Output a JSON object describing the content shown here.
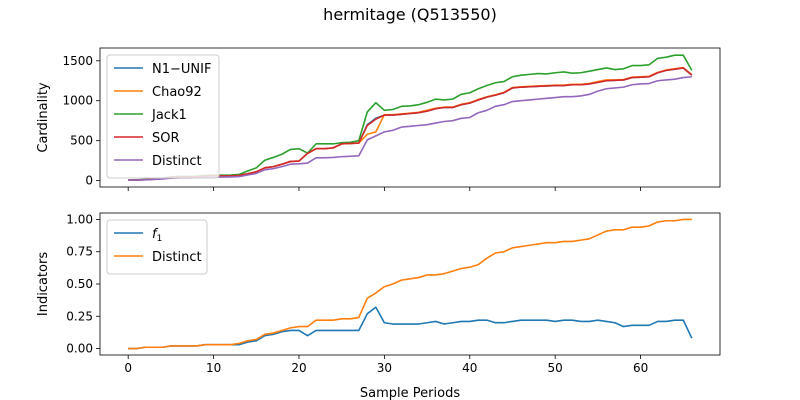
{
  "figure": {
    "title": "hermitage (Q513550)"
  },
  "chart_data": [
    {
      "type": "line",
      "ylabel": "Cardinality",
      "xlabel": "",
      "xlim": [
        -3.3,
        69.3
      ],
      "ylim": [
        -80,
        1660
      ],
      "xticks": [
        0,
        10,
        20,
        30,
        40,
        50,
        60
      ],
      "yticks": [
        0,
        500,
        1000,
        1500
      ],
      "show_xticklabels": false,
      "legend_position": "upper left",
      "grid": false,
      "series": [
        {
          "name": "N1−UNIF",
          "color": "#1f77b4",
          "x": [
            0,
            1,
            2,
            3,
            4,
            5,
            6,
            7,
            8,
            9,
            10,
            11,
            12,
            13,
            14,
            15,
            16,
            17,
            18,
            19,
            20,
            21,
            22,
            23,
            24,
            25,
            26,
            27,
            28,
            29,
            30,
            31,
            32,
            33,
            34,
            35,
            36,
            37,
            38,
            39,
            40,
            41,
            42,
            43,
            44,
            45,
            46,
            47,
            48,
            49,
            50,
            51,
            52,
            53,
            54,
            55,
            56,
            57,
            58,
            59,
            60,
            61,
            62,
            63,
            64,
            65,
            66
          ],
          "y": [
            5,
            8,
            12,
            18,
            25,
            40,
            45,
            45,
            48,
            55,
            58,
            58,
            60,
            65,
            85,
            110,
            160,
            175,
            205,
            240,
            245,
            340,
            400,
            400,
            410,
            460,
            465,
            470,
            700,
            780,
            820,
            820,
            830,
            840,
            850,
            870,
            900,
            915,
            915,
            950,
            970,
            1010,
            1045,
            1070,
            1100,
            1160,
            1170,
            1175,
            1180,
            1185,
            1190,
            1190,
            1200,
            1200,
            1210,
            1230,
            1250,
            1255,
            1260,
            1290,
            1295,
            1300,
            1350,
            1380,
            1395,
            1410,
            1320
          ]
        },
        {
          "name": "Chao92",
          "color": "#ff7f0e",
          "x": [
            0,
            1,
            2,
            3,
            4,
            5,
            6,
            7,
            8,
            9,
            10,
            11,
            12,
            13,
            14,
            15,
            16,
            17,
            18,
            19,
            20,
            21,
            22,
            23,
            24,
            25,
            26,
            27,
            28,
            29,
            30,
            31,
            32,
            33,
            34,
            35,
            36,
            37,
            38,
            39,
            40,
            41,
            42,
            43,
            44,
            45,
            46,
            47,
            48,
            49,
            50,
            51,
            52,
            53,
            54,
            55,
            56,
            57,
            58,
            59,
            60,
            61,
            62,
            63,
            64,
            65,
            66
          ],
          "y": [
            5,
            8,
            12,
            18,
            25,
            40,
            45,
            45,
            48,
            55,
            58,
            58,
            60,
            65,
            85,
            110,
            160,
            175,
            205,
            240,
            245,
            340,
            400,
            400,
            410,
            460,
            465,
            470,
            580,
            610,
            825,
            825,
            835,
            845,
            855,
            880,
            905,
            920,
            920,
            955,
            975,
            1015,
            1050,
            1075,
            1105,
            1165,
            1175,
            1180,
            1185,
            1190,
            1195,
            1195,
            1205,
            1205,
            1215,
            1240,
            1260,
            1260,
            1265,
            1295,
            1300,
            1305,
            1355,
            1385,
            1400,
            1415,
            1325
          ]
        },
        {
          "name": "Jack1",
          "color": "#2ca02c",
          "x": [
            0,
            1,
            2,
            3,
            4,
            5,
            6,
            7,
            8,
            9,
            10,
            11,
            12,
            13,
            14,
            15,
            16,
            17,
            18,
            19,
            20,
            21,
            22,
            23,
            24,
            25,
            26,
            27,
            28,
            29,
            30,
            31,
            32,
            33,
            34,
            35,
            36,
            37,
            38,
            39,
            40,
            41,
            42,
            43,
            44,
            45,
            46,
            47,
            48,
            49,
            50,
            51,
            52,
            53,
            54,
            55,
            56,
            57,
            58,
            59,
            60,
            61,
            62,
            63,
            64,
            65,
            66
          ],
          "y": [
            5,
            10,
            15,
            20,
            30,
            48,
            52,
            52,
            55,
            65,
            68,
            68,
            70,
            78,
            120,
            160,
            255,
            290,
            330,
            390,
            400,
            345,
            460,
            460,
            460,
            475,
            480,
            500,
            860,
            975,
            880,
            890,
            930,
            935,
            950,
            980,
            1020,
            1010,
            1020,
            1080,
            1100,
            1150,
            1190,
            1225,
            1240,
            1300,
            1320,
            1330,
            1340,
            1335,
            1350,
            1360,
            1345,
            1350,
            1370,
            1390,
            1410,
            1390,
            1400,
            1440,
            1440,
            1450,
            1530,
            1545,
            1570,
            1570,
            1380
          ]
        },
        {
          "name": "SOR",
          "color": "#d62728",
          "x": [
            0,
            1,
            2,
            3,
            4,
            5,
            6,
            7,
            8,
            9,
            10,
            11,
            12,
            13,
            14,
            15,
            16,
            17,
            18,
            19,
            20,
            21,
            22,
            23,
            24,
            25,
            26,
            27,
            28,
            29,
            30,
            31,
            32,
            33,
            34,
            35,
            36,
            37,
            38,
            39,
            40,
            41,
            42,
            43,
            44,
            45,
            46,
            47,
            48,
            49,
            50,
            51,
            52,
            53,
            54,
            55,
            56,
            57,
            58,
            59,
            60,
            61,
            62,
            63,
            64,
            65,
            66
          ],
          "y": [
            5,
            8,
            12,
            18,
            25,
            40,
            45,
            45,
            48,
            55,
            58,
            58,
            60,
            65,
            85,
            110,
            160,
            175,
            205,
            240,
            245,
            340,
            400,
            400,
            410,
            460,
            465,
            470,
            690,
            770,
            820,
            820,
            830,
            840,
            850,
            870,
            900,
            915,
            915,
            950,
            970,
            1010,
            1045,
            1070,
            1100,
            1160,
            1170,
            1175,
            1180,
            1185,
            1190,
            1190,
            1200,
            1200,
            1210,
            1230,
            1250,
            1255,
            1260,
            1290,
            1295,
            1300,
            1350,
            1380,
            1395,
            1410,
            1320
          ]
        },
        {
          "name": "Distinct",
          "color": "#9467bd",
          "x": [
            0,
            1,
            2,
            3,
            4,
            5,
            6,
            7,
            8,
            9,
            10,
            11,
            12,
            13,
            14,
            15,
            16,
            17,
            18,
            19,
            20,
            21,
            22,
            23,
            24,
            25,
            26,
            27,
            28,
            29,
            30,
            31,
            32,
            33,
            34,
            35,
            36,
            37,
            38,
            39,
            40,
            41,
            42,
            43,
            44,
            45,
            46,
            47,
            48,
            49,
            50,
            51,
            52,
            53,
            54,
            55,
            56,
            57,
            58,
            59,
            60,
            61,
            62,
            63,
            64,
            65,
            66
          ],
          "y": [
            5,
            7,
            10,
            15,
            20,
            30,
            35,
            35,
            37,
            42,
            44,
            44,
            46,
            50,
            70,
            90,
            135,
            150,
            175,
            205,
            210,
            220,
            285,
            285,
            290,
            300,
            305,
            310,
            510,
            560,
            610,
            630,
            670,
            680,
            690,
            700,
            720,
            740,
            750,
            780,
            790,
            850,
            880,
            930,
            950,
            990,
            1000,
            1010,
            1020,
            1030,
            1040,
            1050,
            1050,
            1060,
            1080,
            1120,
            1150,
            1160,
            1170,
            1200,
            1210,
            1215,
            1250,
            1260,
            1270,
            1290,
            1300
          ]
        }
      ]
    },
    {
      "type": "line",
      "ylabel": "Indicators",
      "xlabel": "Sample Periods",
      "xlim": [
        -3.3,
        69.3
      ],
      "ylim": [
        -0.05,
        1.05
      ],
      "xticks": [
        0,
        10,
        20,
        30,
        40,
        50,
        60
      ],
      "yticks": [
        0.0,
        0.25,
        0.5,
        0.75,
        1.0
      ],
      "ytick_labels": [
        "0.00",
        "0.25",
        "0.50",
        "0.75",
        "1.00"
      ],
      "show_xticklabels": true,
      "legend_position": "upper left",
      "grid": false,
      "series": [
        {
          "name": "f1",
          "color": "#1f77b4",
          "x": [
            0,
            1,
            2,
            3,
            4,
            5,
            6,
            7,
            8,
            9,
            10,
            11,
            12,
            13,
            14,
            15,
            16,
            17,
            18,
            19,
            20,
            21,
            22,
            23,
            24,
            25,
            26,
            27,
            28,
            29,
            30,
            31,
            32,
            33,
            34,
            35,
            36,
            37,
            38,
            39,
            40,
            41,
            42,
            43,
            44,
            45,
            46,
            47,
            48,
            49,
            50,
            51,
            52,
            53,
            54,
            55,
            56,
            57,
            58,
            59,
            60,
            61,
            62,
            63,
            64,
            65,
            66
          ],
          "y": [
            0.0,
            0.0,
            0.01,
            0.01,
            0.01,
            0.02,
            0.02,
            0.02,
            0.02,
            0.03,
            0.03,
            0.03,
            0.03,
            0.03,
            0.05,
            0.06,
            0.1,
            0.11,
            0.13,
            0.14,
            0.14,
            0.1,
            0.14,
            0.14,
            0.14,
            0.14,
            0.14,
            0.14,
            0.27,
            0.32,
            0.2,
            0.19,
            0.19,
            0.19,
            0.19,
            0.2,
            0.21,
            0.19,
            0.2,
            0.21,
            0.21,
            0.22,
            0.22,
            0.2,
            0.2,
            0.21,
            0.22,
            0.22,
            0.22,
            0.22,
            0.21,
            0.22,
            0.22,
            0.21,
            0.21,
            0.22,
            0.21,
            0.2,
            0.17,
            0.18,
            0.18,
            0.18,
            0.21,
            0.21,
            0.22,
            0.22,
            0.08
          ]
        },
        {
          "name": "Distinct",
          "color": "#ff7f0e",
          "x": [
            0,
            1,
            2,
            3,
            4,
            5,
            6,
            7,
            8,
            9,
            10,
            11,
            12,
            13,
            14,
            15,
            16,
            17,
            18,
            19,
            20,
            21,
            22,
            23,
            24,
            25,
            26,
            27,
            28,
            29,
            30,
            31,
            32,
            33,
            34,
            35,
            36,
            37,
            38,
            39,
            40,
            41,
            42,
            43,
            44,
            45,
            46,
            47,
            48,
            49,
            50,
            51,
            52,
            53,
            54,
            55,
            56,
            57,
            58,
            59,
            60,
            61,
            62,
            63,
            64,
            65,
            66
          ],
          "y": [
            0.0,
            0.0,
            0.01,
            0.01,
            0.01,
            0.02,
            0.02,
            0.02,
            0.02,
            0.03,
            0.03,
            0.03,
            0.03,
            0.04,
            0.06,
            0.07,
            0.11,
            0.12,
            0.14,
            0.16,
            0.17,
            0.17,
            0.22,
            0.22,
            0.22,
            0.23,
            0.23,
            0.24,
            0.39,
            0.43,
            0.48,
            0.5,
            0.53,
            0.54,
            0.55,
            0.57,
            0.57,
            0.58,
            0.6,
            0.62,
            0.63,
            0.65,
            0.7,
            0.74,
            0.75,
            0.78,
            0.79,
            0.8,
            0.81,
            0.82,
            0.82,
            0.83,
            0.83,
            0.84,
            0.85,
            0.88,
            0.91,
            0.92,
            0.92,
            0.94,
            0.94,
            0.95,
            0.98,
            0.99,
            0.99,
            1.0,
            1.0
          ]
        }
      ]
    }
  ]
}
